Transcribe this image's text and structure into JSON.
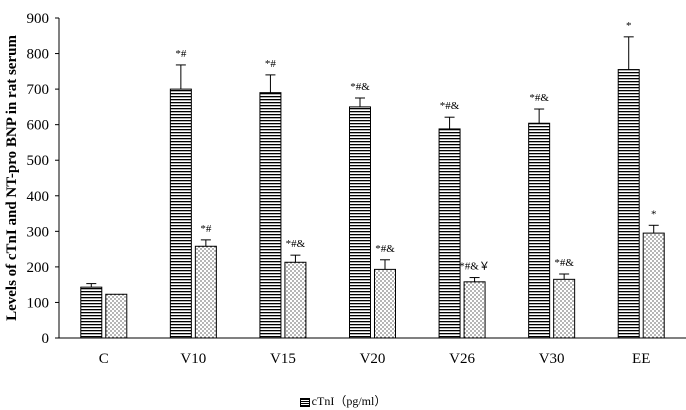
{
  "chart_data": {
    "type": "bar",
    "ylabel": "Levels of cTnI and NT-pro BNP in rat serum",
    "ylim": [
      0,
      900
    ],
    "yticks": [
      0,
      100,
      200,
      300,
      400,
      500,
      600,
      700,
      800,
      900
    ],
    "categories": [
      "C",
      "V10",
      "V15",
      "V20",
      "V26",
      "V30",
      "EE"
    ],
    "grid": false,
    "legend_position": "bottom",
    "series": [
      {
        "name": "cTnI（pg/ml）",
        "pattern": "horizontal-stripes",
        "values": [
          143,
          700,
          690,
          650,
          588,
          604,
          755
        ],
        "errors": [
          10,
          68,
          50,
          25,
          33,
          40,
          92
        ],
        "annotations": [
          "",
          "*#",
          "*#",
          "*#&",
          "*#&",
          "*#&",
          "*"
        ]
      },
      {
        "name": "",
        "pattern": "dots",
        "values": [
          123,
          258,
          213,
          193,
          158,
          165,
          295
        ],
        "errors": [
          0,
          18,
          20,
          27,
          12,
          15,
          22
        ],
        "annotations": [
          "",
          "*#",
          "*#&",
          "*#&",
          "*#&￥",
          "*#&",
          "*"
        ]
      }
    ]
  }
}
